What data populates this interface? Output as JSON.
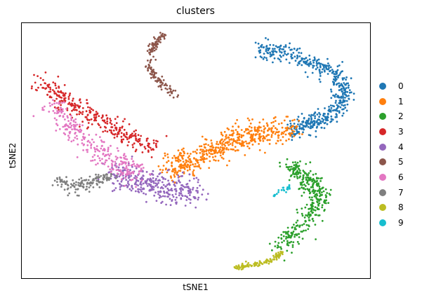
{
  "chart_data": {
    "type": "scatter",
    "title": "clusters",
    "xlabel": "tSNE1",
    "ylabel": "tSNE2",
    "ticks": "none",
    "grid": false,
    "legend_placement": "right",
    "series": [
      {
        "name": "0",
        "color": "#1f77b4"
      },
      {
        "name": "1",
        "color": "#ff7f0e"
      },
      {
        "name": "2",
        "color": "#2ca02c"
      },
      {
        "name": "3",
        "color": "#d62728"
      },
      {
        "name": "4",
        "color": "#9467bd"
      },
      {
        "name": "5",
        "color": "#8c564b"
      },
      {
        "name": "6",
        "color": "#e377c2"
      },
      {
        "name": "7",
        "color": "#7f7f7f"
      },
      {
        "name": "8",
        "color": "#bcbd22"
      },
      {
        "name": "9",
        "color": "#17becf"
      }
    ]
  }
}
